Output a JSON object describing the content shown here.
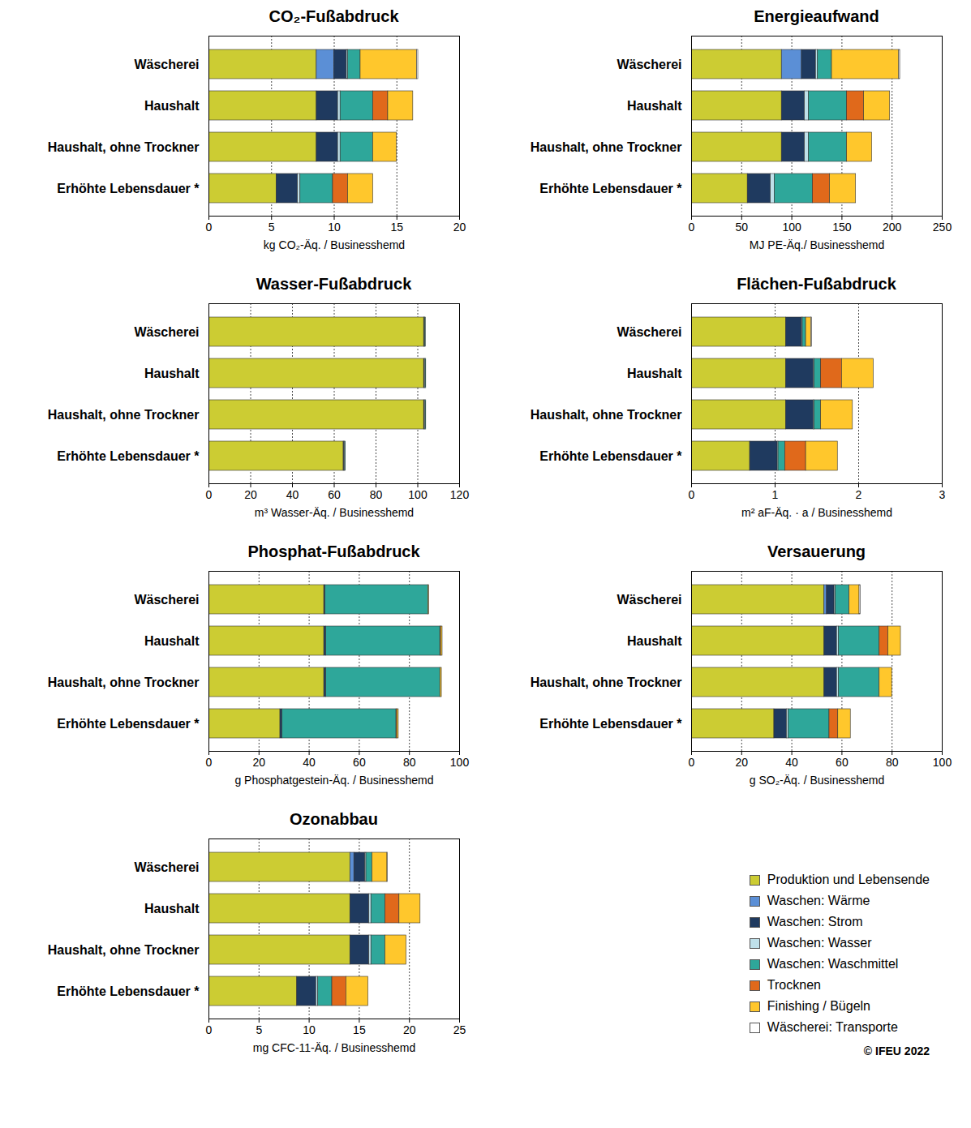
{
  "chart_data": [
    {
      "type": "bar",
      "orientation": "horizontal",
      "stacked": true,
      "grid": true,
      "title": "CO₂-Fußabdruck",
      "x_label": "kg CO₂-Äq. / Businesshemd",
      "categories": [
        "Wäscherei",
        "Haushalt",
        "Haushalt, ohne Trockner",
        "Erhöhte Lebensdauer *"
      ],
      "xlim": [
        0,
        20
      ],
      "xticks": [
        0,
        5,
        10,
        15,
        20
      ],
      "series": [
        {
          "name": "Produktion und Lebensende",
          "color": "#cccc33",
          "values": [
            8.6,
            8.6,
            8.6,
            5.4
          ]
        },
        {
          "name": "Waschen: Wärme",
          "color": "#5b8fd6",
          "values": [
            1.4,
            0,
            0,
            0
          ]
        },
        {
          "name": "Waschen: Strom",
          "color": "#1f3a5f",
          "values": [
            1.0,
            1.7,
            1.7,
            1.7
          ]
        },
        {
          "name": "Waschen: Wasser",
          "color": "#bfe0ea",
          "values": [
            0.1,
            0.2,
            0.2,
            0.2
          ]
        },
        {
          "name": "Waschen: Waschmittel",
          "color": "#2ea79a",
          "values": [
            1.0,
            2.6,
            2.6,
            2.6
          ]
        },
        {
          "name": "Trocknen",
          "color": "#e0691b",
          "values": [
            0,
            1.2,
            0,
            1.2
          ]
        },
        {
          "name": "Finishing / Bügeln",
          "color": "#ffc72c",
          "values": [
            4.5,
            2.0,
            1.9,
            2.0
          ]
        },
        {
          "name": "Wäscherei: Transporte",
          "color": "#ffffff",
          "values": [
            0.1,
            0,
            0,
            0
          ]
        }
      ]
    },
    {
      "type": "bar",
      "orientation": "horizontal",
      "stacked": true,
      "grid": true,
      "title": "Energieaufwand",
      "x_label": "MJ PE-Äq./ Businesshemd",
      "categories": [
        "Wäscherei",
        "Haushalt",
        "Haushalt, ohne Trockner",
        "Erhöhte Lebensdauer *"
      ],
      "xlim": [
        0,
        250
      ],
      "xticks": [
        0,
        50,
        100,
        150,
        200,
        250
      ],
      "series": [
        {
          "name": "Produktion und Lebensende",
          "color": "#cccc33",
          "values": [
            90,
            90,
            90,
            56
          ]
        },
        {
          "name": "Waschen: Wärme",
          "color": "#5b8fd6",
          "values": [
            20,
            0,
            0,
            0
          ]
        },
        {
          "name": "Waschen: Strom",
          "color": "#1f3a5f",
          "values": [
            14,
            23,
            23,
            23
          ]
        },
        {
          "name": "Waschen: Wasser",
          "color": "#bfe0ea",
          "values": [
            2,
            4,
            4,
            4
          ]
        },
        {
          "name": "Waschen: Waschmittel",
          "color": "#2ea79a",
          "values": [
            14,
            38,
            38,
            38
          ]
        },
        {
          "name": "Trocknen",
          "color": "#e0691b",
          "values": [
            0,
            17,
            0,
            17
          ]
        },
        {
          "name": "Finishing / Bügeln",
          "color": "#ffc72c",
          "values": [
            67,
            26,
            25,
            26
          ]
        },
        {
          "name": "Wäscherei: Transporte",
          "color": "#ffffff",
          "values": [
            1,
            0,
            0,
            0
          ]
        }
      ]
    },
    {
      "type": "bar",
      "orientation": "horizontal",
      "stacked": true,
      "grid": true,
      "title": "Wasser-Fußabdruck",
      "x_label": "m³ Wasser-Äq. / Businesshemd",
      "categories": [
        "Wäscherei",
        "Haushalt",
        "Haushalt, ohne Trockner",
        "Erhöhte Lebensdauer *"
      ],
      "xlim": [
        0,
        120
      ],
      "xticks": [
        0,
        20,
        40,
        60,
        80,
        100,
        120
      ],
      "series": [
        {
          "name": "Produktion und Lebensende",
          "color": "#cccc33",
          "values": [
            103,
            103,
            103,
            64.5
          ]
        },
        {
          "name": "Waschen: Wärme",
          "color": "#5b8fd6",
          "values": [
            0,
            0,
            0,
            0
          ]
        },
        {
          "name": "Waschen: Strom",
          "color": "#1f3a5f",
          "values": [
            0.2,
            0.3,
            0.3,
            0.3
          ]
        },
        {
          "name": "Waschen: Wasser",
          "color": "#bfe0ea",
          "values": [
            0.3,
            0.4,
            0.4,
            0.4
          ]
        },
        {
          "name": "Waschen: Waschmittel",
          "color": "#2ea79a",
          "values": [
            0.3,
            0.3,
            0.3,
            0.3
          ]
        },
        {
          "name": "Trocknen",
          "color": "#e0691b",
          "values": [
            0,
            0,
            0,
            0
          ]
        },
        {
          "name": "Finishing / Bügeln",
          "color": "#ffc72c",
          "values": [
            0,
            0,
            0,
            0
          ]
        },
        {
          "name": "Wäscherei: Transporte",
          "color": "#ffffff",
          "values": [
            0,
            0,
            0,
            0
          ]
        }
      ]
    },
    {
      "type": "bar",
      "orientation": "horizontal",
      "stacked": true,
      "grid": true,
      "title": "Flächen-Fußabdruck",
      "x_label": "m² aF-Äq. · a / Businesshemd",
      "categories": [
        "Wäscherei",
        "Haushalt",
        "Haushalt, ohne Trockner",
        "Erhöhte Lebensdauer *"
      ],
      "xlim": [
        0,
        3
      ],
      "xticks": [
        0,
        1,
        2,
        3
      ],
      "series": [
        {
          "name": "Produktion und Lebensende",
          "color": "#cccc33",
          "values": [
            1.13,
            1.13,
            1.13,
            0.7
          ]
        },
        {
          "name": "Waschen: Wärme",
          "color": "#5b8fd6",
          "values": [
            0,
            0,
            0,
            0
          ]
        },
        {
          "name": "Waschen: Strom",
          "color": "#1f3a5f",
          "values": [
            0.19,
            0.33,
            0.33,
            0.33
          ]
        },
        {
          "name": "Waschen: Wasser",
          "color": "#bfe0ea",
          "values": [
            0.01,
            0.01,
            0.01,
            0.01
          ]
        },
        {
          "name": "Waschen: Waschmittel",
          "color": "#2ea79a",
          "values": [
            0.04,
            0.08,
            0.08,
            0.08
          ]
        },
        {
          "name": "Trocknen",
          "color": "#e0691b",
          "values": [
            0,
            0.25,
            0,
            0.25
          ]
        },
        {
          "name": "Finishing / Bügeln",
          "color": "#ffc72c",
          "values": [
            0.06,
            0.38,
            0.38,
            0.38
          ]
        },
        {
          "name": "Wäscherei: Transporte",
          "color": "#ffffff",
          "values": [
            0.01,
            0,
            0,
            0
          ]
        }
      ]
    },
    {
      "type": "bar",
      "orientation": "horizontal",
      "stacked": true,
      "grid": true,
      "title": "Phosphat-Fußabdruck",
      "x_label": "g Phosphatgestein-Äq. / Businesshemd",
      "categories": [
        "Wäscherei",
        "Haushalt",
        "Haushalt, ohne Trockner",
        "Erhöhte Lebensdauer *"
      ],
      "xlim": [
        0,
        100
      ],
      "xticks": [
        0,
        20,
        40,
        60,
        80,
        100
      ],
      "series": [
        {
          "name": "Produktion und Lebensende",
          "color": "#cccc33",
          "values": [
            46,
            46,
            46,
            28.5
          ]
        },
        {
          "name": "Waschen: Wärme",
          "color": "#5b8fd6",
          "values": [
            0,
            0,
            0,
            0
          ]
        },
        {
          "name": "Waschen: Strom",
          "color": "#1f3a5f",
          "values": [
            0.5,
            0.8,
            0.8,
            0.8
          ]
        },
        {
          "name": "Waschen: Wasser",
          "color": "#bfe0ea",
          "values": [
            0,
            0,
            0,
            0
          ]
        },
        {
          "name": "Waschen: Waschmittel",
          "color": "#2ea79a",
          "values": [
            41,
            45.5,
            45.5,
            45.5
          ]
        },
        {
          "name": "Trocknen",
          "color": "#e0691b",
          "values": [
            0,
            0.3,
            0,
            0.3
          ]
        },
        {
          "name": "Finishing / Bügeln",
          "color": "#ffc72c",
          "values": [
            0.3,
            0.6,
            0.6,
            0.6
          ]
        },
        {
          "name": "Wäscherei: Transporte",
          "color": "#ffffff",
          "values": [
            0,
            0,
            0,
            0
          ]
        }
      ]
    },
    {
      "type": "bar",
      "orientation": "horizontal",
      "stacked": true,
      "grid": true,
      "title": "Versauerung",
      "x_label": "g SO₂-Äq. / Businesshemd",
      "categories": [
        "Wäscherei",
        "Haushalt",
        "Haushalt, ohne Trockner",
        "Erhöhte Lebensdauer *"
      ],
      "xlim": [
        0,
        100
      ],
      "xticks": [
        0,
        20,
        40,
        60,
        80,
        100
      ],
      "series": [
        {
          "name": "Produktion und Lebensende",
          "color": "#cccc33",
          "values": [
            53,
            53,
            53,
            33
          ]
        },
        {
          "name": "Waschen: Wärme",
          "color": "#5b8fd6",
          "values": [
            1,
            0,
            0,
            0
          ]
        },
        {
          "name": "Waschen: Strom",
          "color": "#1f3a5f",
          "values": [
            3,
            5,
            5,
            5
          ]
        },
        {
          "name": "Waschen: Wasser",
          "color": "#bfe0ea",
          "values": [
            0.5,
            0.7,
            0.7,
            0.7
          ]
        },
        {
          "name": "Waschen: Waschmittel",
          "color": "#2ea79a",
          "values": [
            5.5,
            16.3,
            16.3,
            16.3
          ]
        },
        {
          "name": "Trocknen",
          "color": "#e0691b",
          "values": [
            0,
            3.5,
            0,
            3.5
          ]
        },
        {
          "name": "Finishing / Bügeln",
          "color": "#ffc72c",
          "values": [
            4,
            5,
            5,
            5
          ]
        },
        {
          "name": "Wäscherei: Transporte",
          "color": "#ffffff",
          "values": [
            0.5,
            0,
            0,
            0
          ]
        }
      ]
    },
    {
      "type": "bar",
      "orientation": "horizontal",
      "stacked": true,
      "grid": true,
      "title": "Ozonabbau",
      "x_label": "mg CFC-11-Äq. / Businesshemd",
      "categories": [
        "Wäscherei",
        "Haushalt",
        "Haushalt, ohne Trockner",
        "Erhöhte Lebensdauer *"
      ],
      "xlim": [
        0,
        25
      ],
      "xticks": [
        0,
        5,
        10,
        15,
        20,
        25
      ],
      "series": [
        {
          "name": "Produktion und Lebensende",
          "color": "#cccc33",
          "values": [
            14.1,
            14.1,
            14.1,
            8.8
          ]
        },
        {
          "name": "Waschen: Wärme",
          "color": "#5b8fd6",
          "values": [
            0.4,
            0,
            0,
            0
          ]
        },
        {
          "name": "Waschen: Strom",
          "color": "#1f3a5f",
          "values": [
            1.1,
            1.9,
            1.9,
            1.9
          ]
        },
        {
          "name": "Waschen: Wasser",
          "color": "#bfe0ea",
          "values": [
            0.1,
            0.2,
            0.2,
            0.2
          ]
        },
        {
          "name": "Waschen: Waschmittel",
          "color": "#2ea79a",
          "values": [
            0.6,
            1.4,
            1.4,
            1.4
          ]
        },
        {
          "name": "Trocknen",
          "color": "#e0691b",
          "values": [
            0,
            1.4,
            0,
            1.4
          ]
        },
        {
          "name": "Finishing / Bügeln",
          "color": "#ffc72c",
          "values": [
            1.5,
            2.1,
            2.1,
            2.2
          ]
        },
        {
          "name": "Wäscherei: Transporte",
          "color": "#ffffff",
          "values": [
            0.05,
            0,
            0,
            0
          ]
        }
      ]
    }
  ],
  "legend": "bottom right",
  "credit": "© IFEU 2022"
}
